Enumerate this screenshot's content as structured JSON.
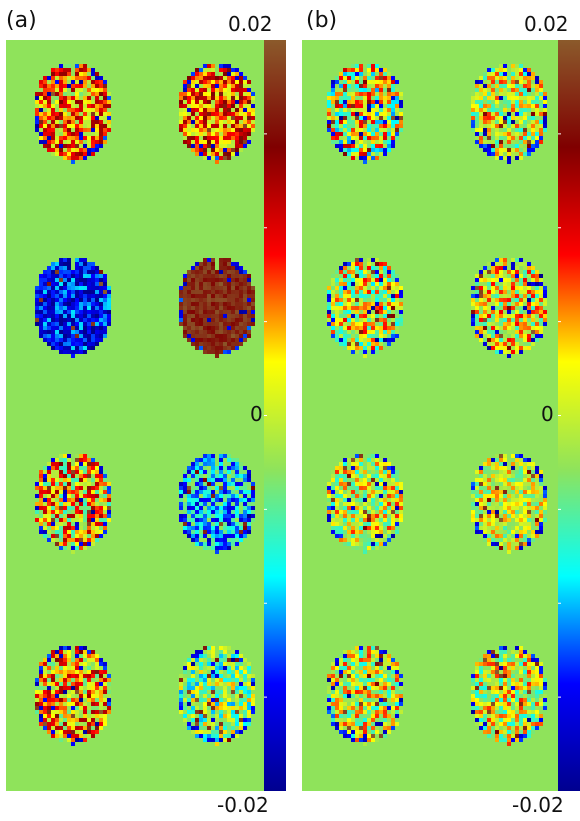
{
  "panels": [
    {
      "label": "(a)",
      "scale_top": "0.02",
      "scale_mid": "0",
      "scale_bottom": "-0.02",
      "slices": [
        {
          "bias": 0.25,
          "noise": 0.45
        },
        {
          "bias": 0.35,
          "noise": 0.45
        },
        {
          "bias": -0.75,
          "noise": 0.3
        },
        {
          "bias": 0.85,
          "noise": 0.12
        },
        {
          "bias": 0.15,
          "noise": 0.5
        },
        {
          "bias": -0.45,
          "noise": 0.35
        },
        {
          "bias": 0.2,
          "noise": 0.45
        },
        {
          "bias": -0.15,
          "noise": 0.4
        }
      ]
    },
    {
      "label": "(b)",
      "scale_top": "0.02",
      "scale_mid": "0",
      "scale_bottom": "-0.02",
      "slices": [
        {
          "bias": 0.0,
          "noise": 0.55
        },
        {
          "bias": 0.0,
          "noise": 0.4
        },
        {
          "bias": 0.0,
          "noise": 0.45
        },
        {
          "bias": 0.05,
          "noise": 0.4
        },
        {
          "bias": 0.0,
          "noise": 0.4
        },
        {
          "bias": 0.0,
          "noise": 0.3
        },
        {
          "bias": 0.0,
          "noise": 0.4
        },
        {
          "bias": 0.0,
          "noise": 0.4
        }
      ]
    }
  ],
  "colors": {
    "background": "#8fe35b",
    "colormap": [
      "#00008f",
      "#0000ff",
      "#00ffff",
      "#8fe35b",
      "#ffff00",
      "#ff0000",
      "#800000",
      "#8b5a2b"
    ]
  }
}
